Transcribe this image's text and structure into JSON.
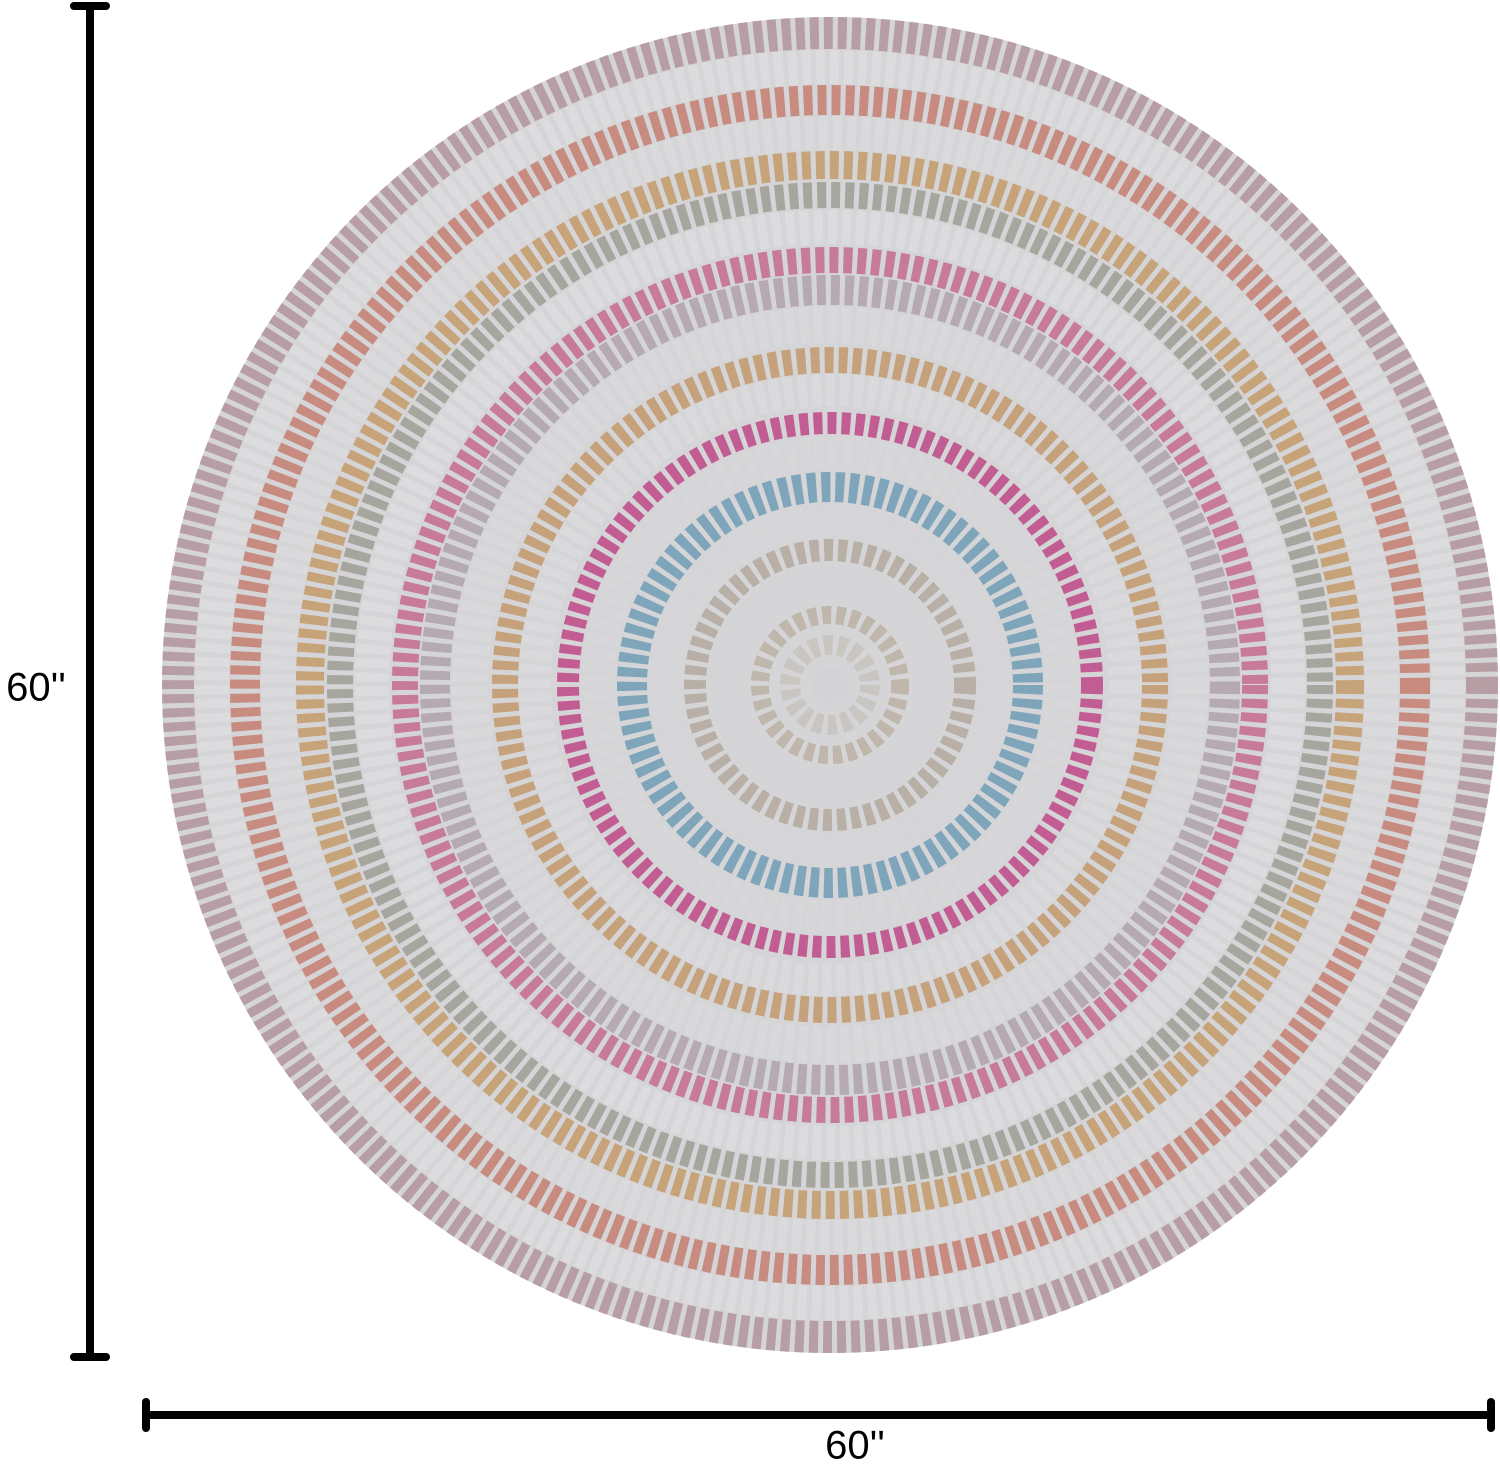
{
  "dimensions": {
    "height": "60''",
    "width": "60''"
  }
}
